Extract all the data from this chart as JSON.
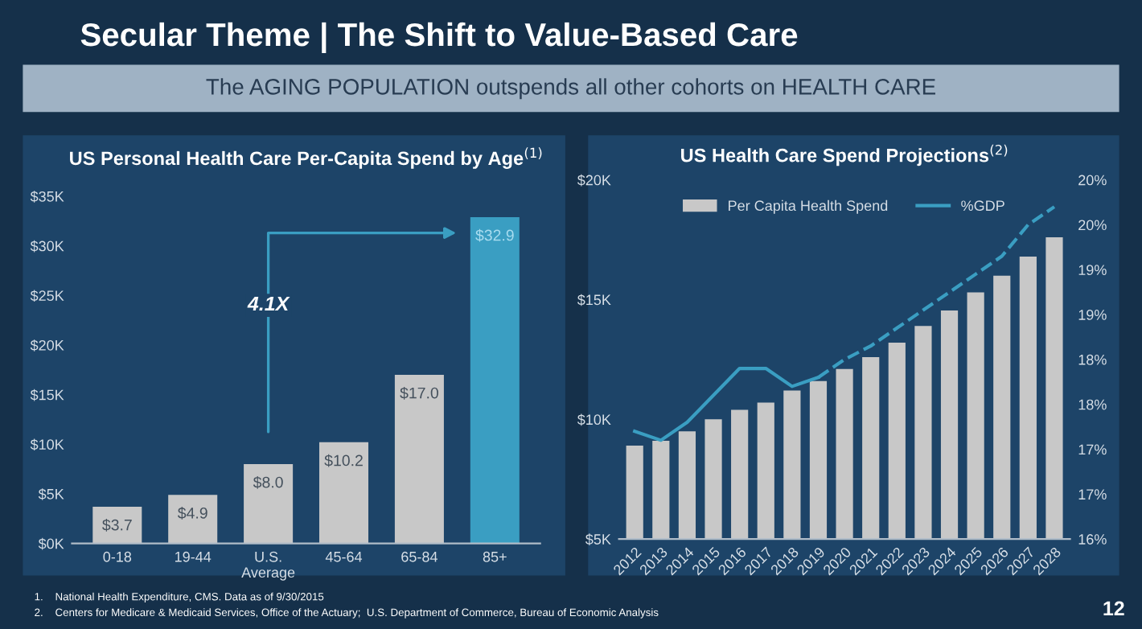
{
  "chart_data": [
    {
      "type": "bar",
      "title": "US Personal Health Care Per-Capita Spend by Age$^{(1)}$",
      "categories": [
        "0-18",
        "19-44",
        "U.S.\nAverage",
        "45-64",
        "65-84",
        "85+"
      ],
      "values": [
        3.7,
        4.9,
        8.0,
        10.2,
        17.0,
        32.9
      ],
      "colors": [
        "#c8c8c8",
        "#c8c8c8",
        "#c8c8c8",
        "#c8c8c8",
        "#c8c8c8",
        "#3a9ec2"
      ],
      "value_labels": [
        "$3.7",
        "$4.9",
        "$8.0",
        "$10.2",
        "$17.0",
        "$32.9"
      ],
      "ylim": [
        0,
        35
      ],
      "yticks": [
        {
          "value": 0,
          "label": "$0K"
        },
        {
          "value": 5,
          "label": "$5K"
        },
        {
          "value": 10,
          "label": "$10K"
        },
        {
          "value": 15,
          "label": "$15K"
        },
        {
          "value": 20,
          "label": "$20K"
        },
        {
          "value": 25,
          "label": "$25K"
        },
        {
          "value": 30,
          "label": "$30K"
        },
        {
          "value": 35,
          "label": "$35K"
        }
      ],
      "annotations": [
        "Secular Theme | The Shift to Value-Based Care",
        "The AGING POPULATION outspends all other cohorts on HEALTH CARE",
        "4.1X"
      ]
    },
    {
      "type": "bar",
      "title": "US Health Care Spend Projections$^{(2)}$",
      "categories": [
        "2012",
        "2013",
        "2014",
        "2015",
        "2016",
        "2017",
        "2018",
        "2019",
        "2020",
        "2021",
        "2022",
        "2023",
        "2024",
        "2025",
        "2026",
        "2027",
        "2028"
      ],
      "series": [
        {
          "name": "Per Capita Health Spend",
          "color": "#c8c8c8",
          "values": [
            8.9,
            9.1,
            9.5,
            10.0,
            10.4,
            10.7,
            11.2,
            11.6,
            12.1,
            12.6,
            13.2,
            13.9,
            14.55,
            15.3,
            16.0,
            16.8,
            17.6
          ]
        },
        {
          "name": "%GDP",
          "type": "line",
          "axis": "y2",
          "color": "#3a9ec2",
          "line_style": "solid",
          "values": [
            17.2,
            17.1,
            17.3,
            17.6,
            17.9,
            17.9,
            17.7,
            17.8,
            null,
            null,
            null,
            null,
            null,
            null,
            null,
            null,
            null
          ]
        },
        {
          "type": "line",
          "axis": "y2",
          "color": "#3a9ec2",
          "line_style": "dashed",
          "values": [
            null,
            null,
            null,
            null,
            null,
            null,
            null,
            17.8,
            18.0,
            18.15,
            18.35,
            18.55,
            18.75,
            18.95,
            19.15,
            19.5,
            19.7
          ]
        }
      ],
      "ylim": [
        5,
        20
      ],
      "yticks": [
        {
          "value": 5,
          "label": "$5K"
        },
        {
          "value": 10,
          "label": "$10K"
        },
        {
          "value": 15,
          "label": "$15K"
        },
        {
          "value": 20,
          "label": "$20K"
        }
      ],
      "y2lim": [
        16,
        20
      ],
      "y2ticks": [
        {
          "value": 16,
          "label": "16%"
        },
        {
          "value": 16.5,
          "label": "17%"
        },
        {
          "value": 17,
          "label": "17%"
        },
        {
          "value": 17.5,
          "label": "18%"
        },
        {
          "value": 18,
          "label": "18%"
        },
        {
          "value": 18.5,
          "label": "19%"
        },
        {
          "value": 19,
          "label": "19%"
        },
        {
          "value": 19.5,
          "label": "20%"
        },
        {
          "value": 20,
          "label": "20%"
        }
      ],
      "legend": "top",
      "annotations": [
        "1.    National Health Expenditure, CMS. Data as of 9/30/2015",
        "2.    Centers for Medicare & Medicaid Services, Office of the Actuary;  U.S. Department of Commerce, Bureau of Economic Analysis",
        "12"
      ]
    }
  ]
}
